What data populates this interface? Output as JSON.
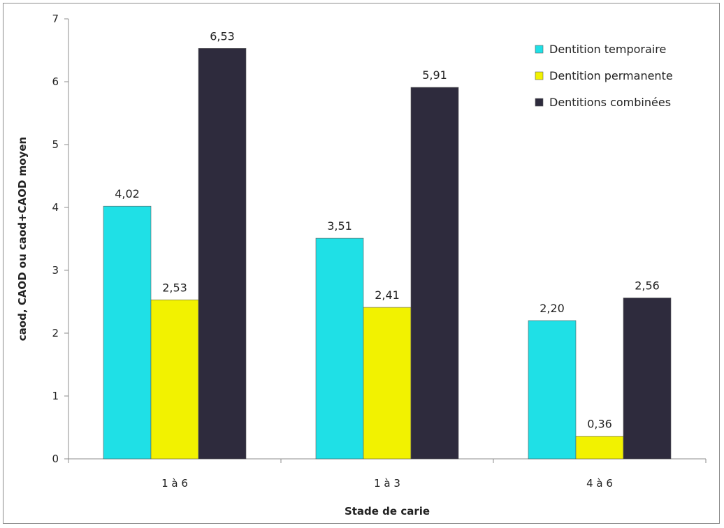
{
  "chart_data": {
    "type": "bar",
    "title": "",
    "xlabel": "Stade de carie",
    "ylabel": "caod, CAOD ou caod+CAOD moyen",
    "categories": [
      "1 à 6",
      "1 à 3",
      "4 à 6"
    ],
    "series": [
      {
        "name": "Dentition temporaire",
        "color": "#1fe0e6",
        "values": [
          4.02,
          3.51,
          2.2
        ],
        "labels": [
          "4,02",
          "3,51",
          "2,20"
        ]
      },
      {
        "name": "Dentition permanente",
        "color": "#f2f200",
        "values": [
          2.53,
          2.41,
          0.36
        ],
        "labels": [
          "2,53",
          "2,41",
          "0,36"
        ]
      },
      {
        "name": "Dentitions combinées",
        "color": "#2e2b3d",
        "values": [
          6.53,
          5.91,
          2.56
        ],
        "labels": [
          "6,53",
          "5,91",
          "2,56"
        ]
      }
    ],
    "ylim": [
      0,
      7
    ],
    "yticks": [
      "0",
      "1",
      "2",
      "3",
      "4",
      "5",
      "6",
      "7"
    ],
    "grid": false,
    "legend_position": "top-right"
  }
}
